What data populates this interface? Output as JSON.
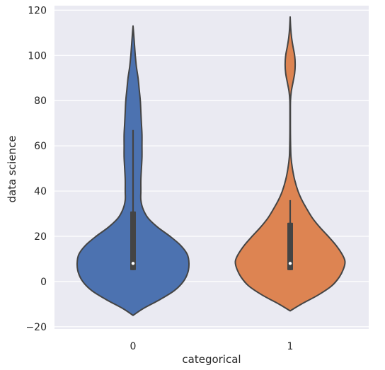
{
  "chart_data": {
    "type": "violin",
    "xlabel": "categorical",
    "ylabel": "data science",
    "ylim": [
      -21,
      122
    ],
    "yticks": [
      -20,
      0,
      20,
      40,
      60,
      80,
      100,
      120
    ],
    "ytick_labels": [
      "−20",
      "0",
      "20",
      "40",
      "60",
      "80",
      "100",
      "120"
    ],
    "grid": true,
    "background": "#eaeaf2",
    "grid_color": "#ffffff",
    "outline_color": "#444444",
    "categories": [
      "0",
      "1"
    ],
    "series": [
      {
        "category": "0",
        "color": "#4c72b0",
        "min": -15,
        "max": 113,
        "median": 8,
        "q1": 5,
        "q3": 31,
        "whisker_low": 5,
        "whisker_high": 67,
        "density": [
          [
            -15,
            0.0
          ],
          [
            -12,
            0.18
          ],
          [
            -8,
            0.48
          ],
          [
            -4,
            0.74
          ],
          [
            0,
            0.9
          ],
          [
            4,
            0.98
          ],
          [
            8,
            1.0
          ],
          [
            12,
            0.97
          ],
          [
            16,
            0.85
          ],
          [
            20,
            0.66
          ],
          [
            24,
            0.44
          ],
          [
            28,
            0.27
          ],
          [
            32,
            0.18
          ],
          [
            36,
            0.14
          ],
          [
            40,
            0.14
          ],
          [
            45,
            0.14
          ],
          [
            50,
            0.15
          ],
          [
            55,
            0.16
          ],
          [
            60,
            0.16
          ],
          [
            65,
            0.16
          ],
          [
            70,
            0.15
          ],
          [
            75,
            0.14
          ],
          [
            80,
            0.13
          ],
          [
            85,
            0.11
          ],
          [
            90,
            0.09
          ],
          [
            95,
            0.06
          ],
          [
            100,
            0.04
          ],
          [
            105,
            0.025
          ],
          [
            110,
            0.01
          ],
          [
            113,
            0.0
          ]
        ]
      },
      {
        "category": "1",
        "color": "#dd8452",
        "min": -13,
        "max": 117,
        "median": 8,
        "q1": 5,
        "q3": 26,
        "whisker_low": 5,
        "whisker_high": 36,
        "density": [
          [
            -13,
            0.0
          ],
          [
            -10,
            0.2
          ],
          [
            -6,
            0.5
          ],
          [
            -2,
            0.74
          ],
          [
            2,
            0.88
          ],
          [
            6,
            0.96
          ],
          [
            9,
            0.98
          ],
          [
            12,
            0.93
          ],
          [
            16,
            0.82
          ],
          [
            20,
            0.68
          ],
          [
            24,
            0.53
          ],
          [
            28,
            0.4
          ],
          [
            32,
            0.3
          ],
          [
            36,
            0.21
          ],
          [
            40,
            0.14
          ],
          [
            45,
            0.08
          ],
          [
            50,
            0.04
          ],
          [
            55,
            0.015
          ],
          [
            60,
            0.008
          ],
          [
            65,
            0.005
          ],
          [
            70,
            0.004
          ],
          [
            75,
            0.004
          ],
          [
            80,
            0.006
          ],
          [
            84,
            0.02
          ],
          [
            88,
            0.05
          ],
          [
            92,
            0.08
          ],
          [
            96,
            0.09
          ],
          [
            100,
            0.08
          ],
          [
            104,
            0.05
          ],
          [
            108,
            0.025
          ],
          [
            112,
            0.01
          ],
          [
            117,
            0.0
          ]
        ]
      }
    ]
  }
}
